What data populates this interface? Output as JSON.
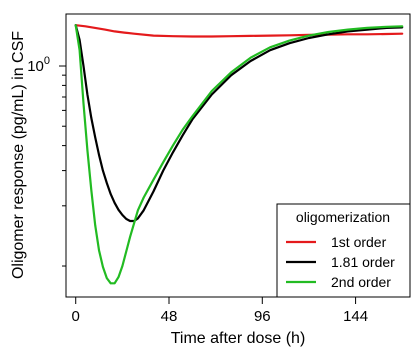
{
  "chart_data": {
    "type": "line",
    "title": "",
    "xlabel": "Time after dose (h)",
    "ylabel": "Oligomer response (pg/mL) in CSF",
    "xlim": [
      -5,
      172
    ],
    "ylim": [
      0.07,
      1.82
    ],
    "y_scale": "log",
    "x_ticks": [
      0,
      48,
      96,
      144
    ],
    "y_tick_labels": [
      {
        "value": 1,
        "label": "10",
        "superscript": "0"
      }
    ],
    "y_minor_ticks": [
      0.1,
      0.2,
      0.3,
      0.4,
      0.5,
      0.6,
      0.7,
      0.8,
      0.9
    ],
    "grid": false,
    "legend": {
      "title": "oligomerization",
      "position": "bottom-right"
    },
    "series": [
      {
        "name": "1st order",
        "color": "#e41a1c",
        "x": [
          0,
          5,
          10,
          15,
          20,
          25,
          30,
          40,
          50,
          60,
          70,
          80,
          90,
          100,
          110,
          120,
          130,
          140,
          150,
          160,
          168
        ],
        "y": [
          1.6,
          1.58,
          1.55,
          1.52,
          1.49,
          1.47,
          1.45,
          1.42,
          1.41,
          1.405,
          1.405,
          1.41,
          1.415,
          1.42,
          1.425,
          1.43,
          1.435,
          1.44,
          1.44,
          1.445,
          1.45
        ]
      },
      {
        "name": "1.81 order",
        "color": "#000000",
        "x": [
          0,
          2,
          4,
          6,
          8,
          10,
          12,
          14,
          16,
          18,
          20,
          22,
          24,
          26,
          28,
          30,
          32,
          35,
          40,
          45,
          50,
          55,
          60,
          70,
          80,
          90,
          100,
          110,
          120,
          130,
          140,
          150,
          160,
          168
        ],
        "y": [
          1.6,
          1.35,
          1.0,
          0.72,
          0.55,
          0.44,
          0.36,
          0.3,
          0.26,
          0.229,
          0.207,
          0.191,
          0.18,
          0.172,
          0.168,
          0.168,
          0.173,
          0.19,
          0.236,
          0.3,
          0.37,
          0.45,
          0.54,
          0.72,
          0.9,
          1.06,
          1.2,
          1.3,
          1.38,
          1.44,
          1.49,
          1.52,
          1.55,
          1.56
        ]
      },
      {
        "name": "2nd order",
        "color": "#22bb22",
        "x": [
          0,
          2,
          4,
          6,
          8,
          10,
          12,
          14,
          16,
          18,
          20,
          22,
          24,
          26,
          28,
          30,
          32,
          35,
          40,
          45,
          50,
          55,
          60,
          70,
          80,
          90,
          100,
          110,
          120,
          130,
          140,
          150,
          160,
          168
        ],
        "y": [
          1.6,
          1.2,
          0.65,
          0.38,
          0.24,
          0.16,
          0.12,
          0.099,
          0.087,
          0.082,
          0.082,
          0.088,
          0.1,
          0.118,
          0.14,
          0.163,
          0.19,
          0.22,
          0.27,
          0.33,
          0.4,
          0.48,
          0.56,
          0.75,
          0.93,
          1.1,
          1.24,
          1.34,
          1.42,
          1.48,
          1.52,
          1.55,
          1.57,
          1.58
        ]
      }
    ]
  }
}
